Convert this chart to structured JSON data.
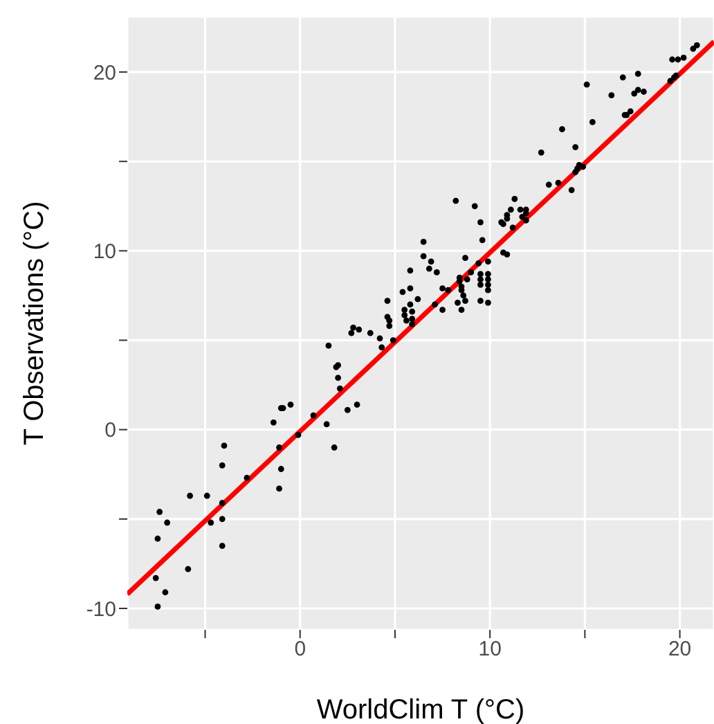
{
  "chart_data": {
    "type": "scatter",
    "xlabel": "WorldClim T (°C)",
    "ylabel": "T Observations (°C)",
    "xlim": [
      -9.1,
      21.8
    ],
    "ylim": [
      -11.2,
      23.1
    ],
    "xticks": [
      {
        "value": -5,
        "label": null
      },
      0,
      {
        "value": 5,
        "label": null
      },
      10,
      {
        "value": 15,
        "label": null
      },
      20
    ],
    "yticks": [
      -10,
      {
        "value": -5,
        "label": null
      },
      0,
      {
        "value": 5,
        "label": null
      },
      10,
      {
        "value": 15,
        "label": null
      },
      20
    ],
    "grid": true,
    "marker": "circle",
    "series": [
      {
        "type": "scatter",
        "color": "#000000",
        "x": [
          -7.4,
          -7.0,
          -7.5,
          -7.6,
          -7.1,
          -7.5,
          -5.9,
          -5.8,
          -4.9,
          -4.7,
          -4.1,
          -4.1,
          -4.1,
          -4.0,
          -4.1,
          -2.8,
          -1.4,
          -1.0,
          -0.9,
          -0.5,
          -1.1,
          -1.0,
          -1.1,
          -0.1,
          0.7,
          1.4,
          1.8,
          2.5,
          3.0,
          2.1,
          1.5,
          1.9,
          2.0,
          2.0,
          2.7,
          2.8,
          3.1,
          3.7,
          4.2,
          4.3,
          4.6,
          4.6,
          4.7,
          4.7,
          4.9,
          5.4,
          5.5,
          5.5,
          5.6,
          5.8,
          5.8,
          5.8,
          5.9,
          5.9,
          5.9,
          6.2,
          6.5,
          6.5,
          6.9,
          6.8,
          7.2,
          7.1,
          7.5,
          7.5,
          7.8,
          8.2,
          9.2,
          9.5,
          9.6,
          8.7,
          8.4,
          8.4,
          8.5,
          8.5,
          8.6,
          8.7,
          8.3,
          8.5,
          8.8,
          9.0,
          9.4,
          9.5,
          9.5,
          9.5,
          9.5,
          9.9,
          9.9,
          9.9,
          9.9,
          9.9,
          9.9,
          10.6,
          10.7,
          10.9,
          10.9,
          11.1,
          11.3,
          11.6,
          11.7,
          11.2,
          10.7,
          10.9,
          11.9,
          11.9,
          11.9,
          12.7,
          13.1,
          13.6,
          14.3,
          13.8,
          14.5,
          14.5,
          14.7,
          14.9,
          14.6,
          15.1,
          15.4,
          16.4,
          17.0,
          17.1,
          17.2,
          17.4,
          17.8,
          17.6,
          17.8,
          18.1,
          19.5,
          19.7,
          19.8,
          19.6,
          19.9,
          20.2,
          20.7,
          20.9
        ],
        "values": [
          -4.6,
          -5.2,
          -6.1,
          -8.3,
          -9.1,
          -9.9,
          -7.8,
          -3.7,
          -3.7,
          -5.2,
          -4.1,
          -5.0,
          -6.5,
          -0.9,
          -2.0,
          -2.7,
          0.4,
          1.2,
          1.2,
          1.4,
          -1.0,
          -2.2,
          -3.3,
          -0.3,
          0.8,
          0.3,
          -1.0,
          1.1,
          1.4,
          2.3,
          4.7,
          3.5,
          3.6,
          2.9,
          5.4,
          5.7,
          5.6,
          5.4,
          5.1,
          4.6,
          7.2,
          6.3,
          6.1,
          5.8,
          5.0,
          7.7,
          6.7,
          6.4,
          6.1,
          7.9,
          7.0,
          8.9,
          6.6,
          6.2,
          5.9,
          7.3,
          10.5,
          9.7,
          9.4,
          9.0,
          8.8,
          7.0,
          7.9,
          6.7,
          7.8,
          12.8,
          12.5,
          11.6,
          10.6,
          9.6,
          8.5,
          8.3,
          8.0,
          7.8,
          7.5,
          7.2,
          7.1,
          6.7,
          8.4,
          8.8,
          9.3,
          8.7,
          8.4,
          8.1,
          7.2,
          9.4,
          8.7,
          8.4,
          8.1,
          7.8,
          7.1,
          11.6,
          11.5,
          12.0,
          11.8,
          12.3,
          12.9,
          12.3,
          11.9,
          11.3,
          9.9,
          9.8,
          12.3,
          12.1,
          11.7,
          15.5,
          13.7,
          13.8,
          13.4,
          16.8,
          15.8,
          14.4,
          14.8,
          14.7,
          14.6,
          19.3,
          17.2,
          18.7,
          19.7,
          17.6,
          17.6,
          17.8,
          19.9,
          18.8,
          19.0,
          18.9,
          19.5,
          19.7,
          19.8,
          20.7,
          20.7,
          20.8,
          21.3,
          21.5
        ]
      },
      {
        "type": "line",
        "color": "#ff0000",
        "x": [
          -9.1,
          21.8
        ],
        "values": [
          -9.2,
          21.7
        ],
        "marker": "none"
      }
    ]
  }
}
